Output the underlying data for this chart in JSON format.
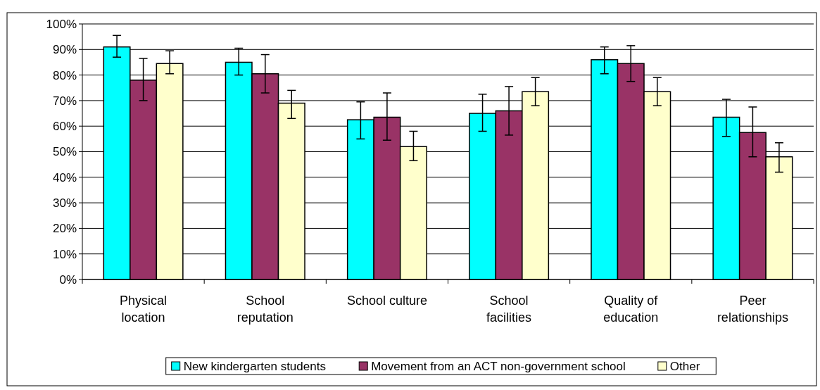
{
  "chart_data": {
    "type": "bar",
    "categories": [
      "Physical location",
      "School reputation",
      "School culture",
      "School facilities",
      "Quality of education",
      "Peer relationships"
    ],
    "series": [
      {
        "name": "New kindergarten students",
        "color": "#00ffff",
        "values": [
          91,
          85,
          62.5,
          65,
          86,
          63.5
        ],
        "errors": [
          [
            87,
            95.5
          ],
          [
            80,
            90.5
          ],
          [
            55,
            69.5
          ],
          [
            58,
            72.5
          ],
          [
            80.5,
            91
          ],
          [
            56,
            70.5
          ]
        ]
      },
      {
        "name": "Movement from an ACT non-government school",
        "color": "#993366",
        "values": [
          78,
          80.5,
          63.5,
          66,
          84.5,
          57.5
        ],
        "errors": [
          [
            70,
            86.5
          ],
          [
            73,
            88
          ],
          [
            54.5,
            73
          ],
          [
            56.5,
            75.5
          ],
          [
            77.5,
            91.5
          ],
          [
            48,
            67.5
          ]
        ]
      },
      {
        "name": "Other",
        "color": "#ffffcc",
        "values": [
          84.5,
          69,
          52,
          73.5,
          73.5,
          48
        ],
        "errors": [
          [
            80.5,
            89.5
          ],
          [
            63,
            74
          ],
          [
            46.5,
            58
          ],
          [
            68,
            79
          ],
          [
            68,
            79
          ],
          [
            42,
            53.5
          ]
        ]
      }
    ],
    "ylim": [
      0,
      100
    ],
    "yticks": [
      {
        "value": 0,
        "label": "0%"
      },
      {
        "value": 10,
        "label": "10%"
      },
      {
        "value": 20,
        "label": "20%"
      },
      {
        "value": 30,
        "label": "30%"
      },
      {
        "value": 40,
        "label": "40%"
      },
      {
        "value": 50,
        "label": "50%"
      },
      {
        "value": 60,
        "label": "60%"
      },
      {
        "value": 70,
        "label": "70%"
      },
      {
        "value": 80,
        "label": "80%"
      },
      {
        "value": 90,
        "label": "90%"
      },
      {
        "value": 100,
        "label": "100%"
      }
    ],
    "grid": "y",
    "legend": "bottom"
  }
}
